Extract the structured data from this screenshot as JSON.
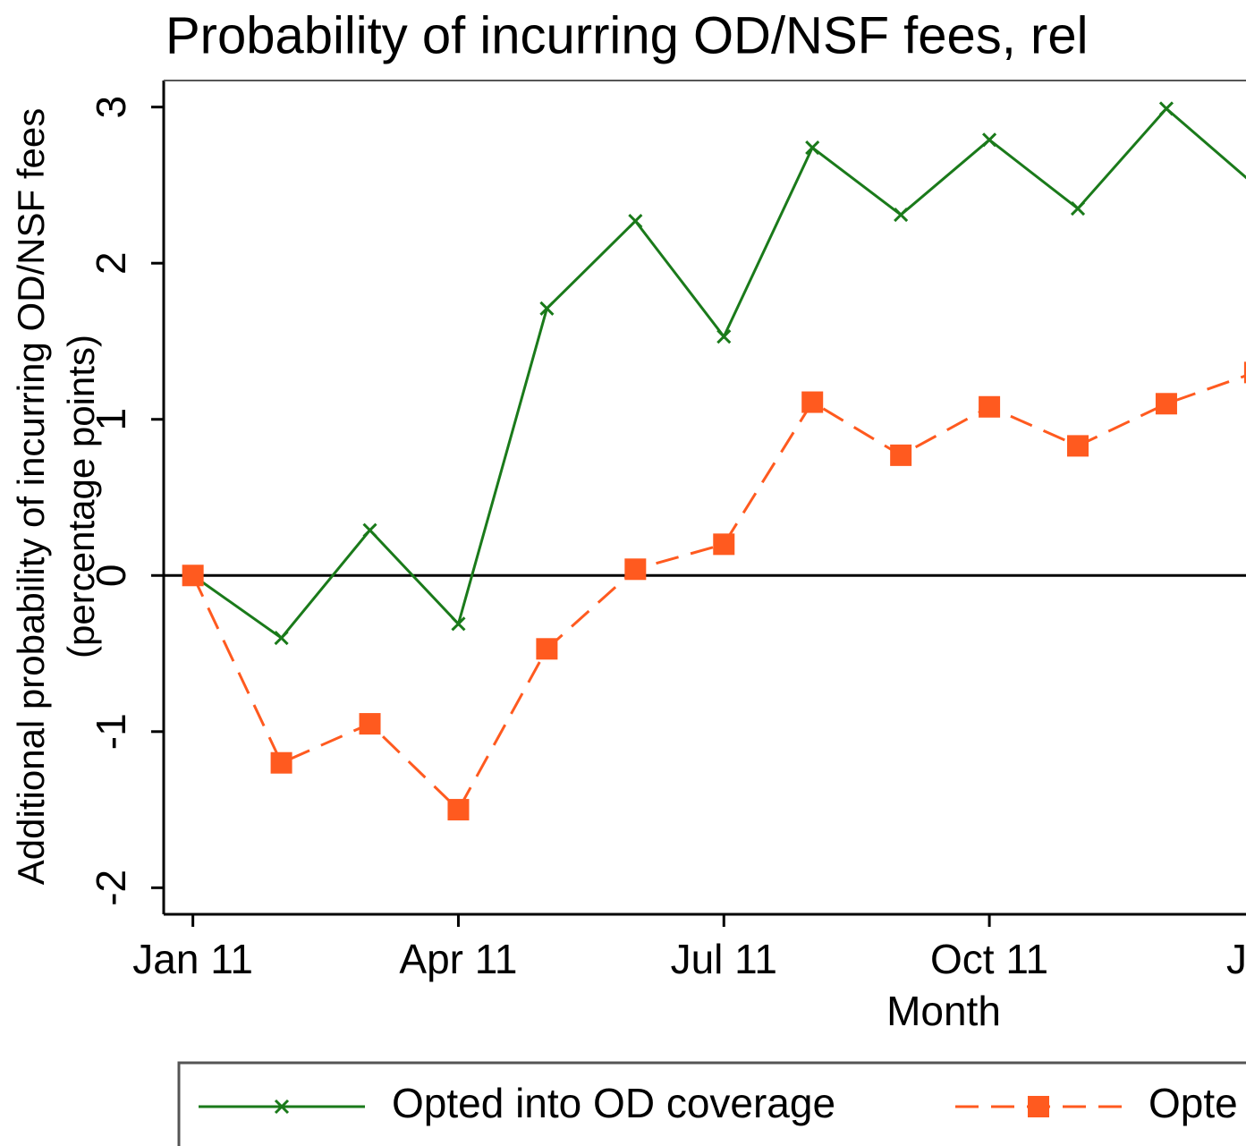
{
  "chart_data": {
    "type": "line",
    "title": "Probability of incurring OD/NSF fees, rel",
    "ylabel": [
      "Additional probability of incurring OD/NSF fees",
      "(percentage points)"
    ],
    "xlabel": "Month",
    "x": [
      0,
      1,
      2,
      3,
      4,
      5,
      6,
      7,
      8,
      9,
      10,
      11,
      12
    ],
    "series": [
      {
        "name": "Opted into OD coverage",
        "color": "#1a7a1a",
        "marker": "x",
        "dash": "solid",
        "values": [
          0,
          -0.4,
          0.29,
          -0.31,
          1.71,
          2.27,
          1.53,
          2.74,
          2.31,
          2.79,
          2.35,
          2.99,
          2.5
        ]
      },
      {
        "name": "Opte",
        "color": "#ff5a1f",
        "marker": "square",
        "dash": "dashed",
        "values": [
          0,
          -1.2,
          -0.95,
          -1.5,
          -0.47,
          0.04,
          0.2,
          1.11,
          0.77,
          1.08,
          0.83,
          1.1,
          1.3
        ]
      }
    ],
    "reference_line": 0,
    "xlim": [
      -0.33,
      11.9
    ],
    "xticks": [
      {
        "value": 0,
        "label": "Jan 11"
      },
      {
        "value": 3,
        "label": "Apr 11"
      },
      {
        "value": 6,
        "label": "Jul 11"
      },
      {
        "value": 9,
        "label": "Oct 11"
      },
      {
        "value": 12,
        "label": "Jar"
      }
    ],
    "ylim": [
      -2.17,
      3.17
    ],
    "yticks": [
      -2,
      -1,
      0,
      1,
      2,
      3
    ],
    "legend": "bottom"
  }
}
